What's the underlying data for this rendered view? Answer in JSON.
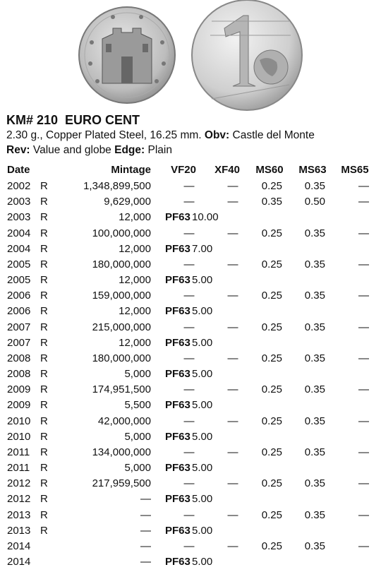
{
  "header": {
    "title": "KM# 210  EURO CENT"
  },
  "description": {
    "line1": [
      {
        "text": "2.30 g., Copper Plated Steel, 16.25 mm. ",
        "bold": false
      },
      {
        "text": "Obv:",
        "bold": true
      },
      {
        "text": " Castle del Monte",
        "bold": false
      }
    ],
    "line2": [
      {
        "text": "Rev:",
        "bold": true
      },
      {
        "text": " Value and globe ",
        "bold": false
      },
      {
        "text": "Edge:",
        "bold": true
      },
      {
        "text": " Plain",
        "bold": false
      }
    ]
  },
  "table": {
    "columns": [
      "Date",
      "Mintage",
      "VF20",
      "XF40",
      "MS60",
      "MS63",
      "MS65"
    ],
    "rows": [
      {
        "date": "2002",
        "mark": "R",
        "mintage": "1,348,899,500",
        "vf20": "—",
        "xf40": "—",
        "ms60": "0.25",
        "ms63": "0.35",
        "ms65": "—"
      },
      {
        "date": "2003",
        "mark": "R",
        "mintage": "9,629,000",
        "vf20": "—",
        "xf40": "—",
        "ms60": "0.35",
        "ms63": "0.50",
        "ms65": "—"
      },
      {
        "date": "2003",
        "mark": "R",
        "mintage": "12,000",
        "proof_grade": "PF63",
        "proof_price": "10.00"
      },
      {
        "date": "2004",
        "mark": "R",
        "mintage": "100,000,000",
        "vf20": "—",
        "xf40": "—",
        "ms60": "0.25",
        "ms63": "0.35",
        "ms65": "—"
      },
      {
        "date": "2004",
        "mark": "R",
        "mintage": "12,000",
        "proof_grade": "PF63",
        "proof_price": "7.00"
      },
      {
        "date": "2005",
        "mark": "R",
        "mintage": "180,000,000",
        "vf20": "—",
        "xf40": "—",
        "ms60": "0.25",
        "ms63": "0.35",
        "ms65": "—"
      },
      {
        "date": "2005",
        "mark": "R",
        "mintage": "12,000",
        "proof_grade": "PF63",
        "proof_price": "5.00"
      },
      {
        "date": "2006",
        "mark": "R",
        "mintage": "159,000,000",
        "vf20": "—",
        "xf40": "—",
        "ms60": "0.25",
        "ms63": "0.35",
        "ms65": "—"
      },
      {
        "date": "2006",
        "mark": "R",
        "mintage": "12,000",
        "proof_grade": "PF63",
        "proof_price": "5.00"
      },
      {
        "date": "2007",
        "mark": "R",
        "mintage": "215,000,000",
        "vf20": "—",
        "xf40": "—",
        "ms60": "0.25",
        "ms63": "0.35",
        "ms65": "—"
      },
      {
        "date": "2007",
        "mark": "R",
        "mintage": "12,000",
        "proof_grade": "PF63",
        "proof_price": "5.00"
      },
      {
        "date": "2008",
        "mark": "R",
        "mintage": "180,000,000",
        "vf20": "—",
        "xf40": "—",
        "ms60": "0.25",
        "ms63": "0.35",
        "ms65": "—"
      },
      {
        "date": "2008",
        "mark": "R",
        "mintage": "5,000",
        "proof_grade": "PF63",
        "proof_price": "5.00"
      },
      {
        "date": "2009",
        "mark": "R",
        "mintage": "174,951,500",
        "vf20": "—",
        "xf40": "—",
        "ms60": "0.25",
        "ms63": "0.35",
        "ms65": "—"
      },
      {
        "date": "2009",
        "mark": "R",
        "mintage": "5,500",
        "proof_grade": "PF63",
        "proof_price": "5.00"
      },
      {
        "date": "2010",
        "mark": "R",
        "mintage": "42,000,000",
        "vf20": "—",
        "xf40": "—",
        "ms60": "0.25",
        "ms63": "0.35",
        "ms65": "—"
      },
      {
        "date": "2010",
        "mark": "R",
        "mintage": "5,000",
        "proof_grade": "PF63",
        "proof_price": "5.00"
      },
      {
        "date": "2011",
        "mark": "R",
        "mintage": "134,000,000",
        "vf20": "—",
        "xf40": "—",
        "ms60": "0.25",
        "ms63": "0.35",
        "ms65": "—"
      },
      {
        "date": "2011",
        "mark": "R",
        "mintage": "5,000",
        "proof_grade": "PF63",
        "proof_price": "5.00"
      },
      {
        "date": "2012",
        "mark": "R",
        "mintage": "217,959,500",
        "vf20": "—",
        "xf40": "—",
        "ms60": "0.25",
        "ms63": "0.35",
        "ms65": "—"
      },
      {
        "date": "2012",
        "mark": "R",
        "mintage": "—",
        "proof_grade": "PF63",
        "proof_price": "5.00"
      },
      {
        "date": "2013",
        "mark": "R",
        "mintage": "—",
        "vf20": "—",
        "xf40": "—",
        "ms60": "0.25",
        "ms63": "0.35",
        "ms65": "—"
      },
      {
        "date": "2013",
        "mark": "R",
        "mintage": "—",
        "proof_grade": "PF63",
        "proof_price": "5.00"
      },
      {
        "date": "2014",
        "mintage": "—",
        "vf20": "—",
        "xf40": "—",
        "ms60": "0.25",
        "ms63": "0.35",
        "ms65": "—"
      },
      {
        "date": "2014",
        "mintage": "—",
        "proof_grade": "PF63",
        "proof_price": "5.00"
      }
    ]
  }
}
